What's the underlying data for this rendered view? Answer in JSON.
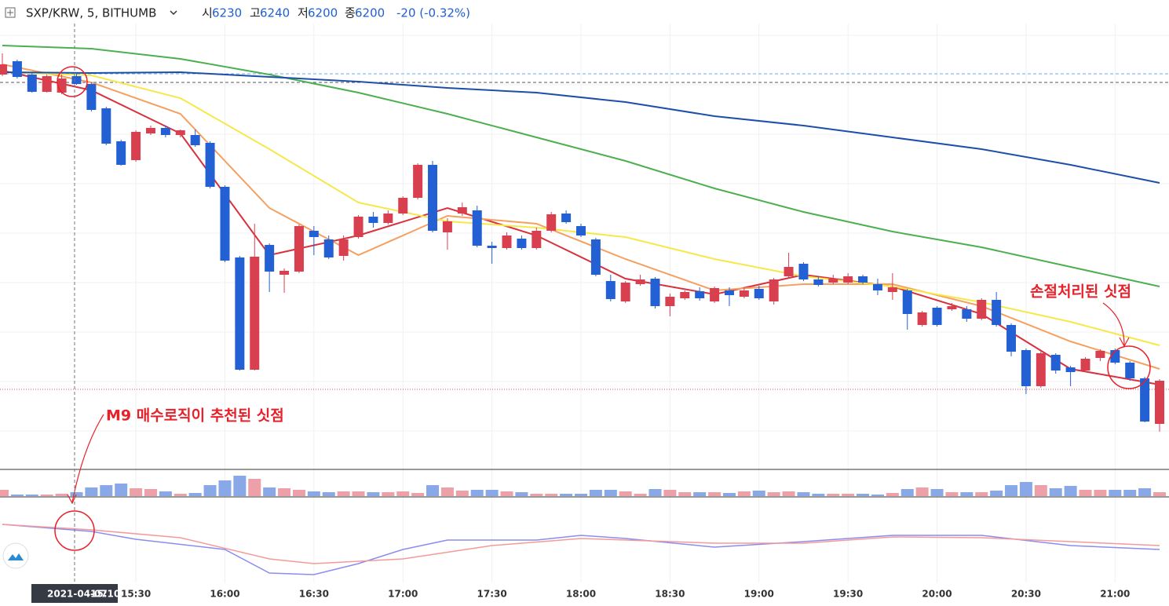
{
  "chart_data": {
    "type": "candlestick",
    "header": {
      "symbol": "SXP/KRW, 5, BITHUMB",
      "open_label": "시",
      "open": 6230,
      "high_label": "고",
      "high": 6240,
      "low_label": "저",
      "low": 6200,
      "close_label": "종",
      "close": 6200,
      "change": "-20 (-0.32%)"
    },
    "categories": [
      null,
      null,
      null,
      null,
      null,
      null,
      null,
      null,
      null,
      "15:30",
      null,
      null,
      null,
      null,
      null,
      "16:00",
      null,
      null,
      null,
      null,
      null,
      "16:30",
      null,
      null,
      null,
      null,
      null,
      "17:00",
      null,
      null,
      null,
      null,
      null,
      "17:30",
      null,
      null,
      null,
      null,
      null,
      "18:00",
      null,
      null,
      null,
      null,
      null,
      "18:30",
      null,
      null,
      null,
      null,
      null,
      "19:00",
      null,
      null,
      null,
      null,
      null,
      "19:30",
      null,
      null,
      null,
      null,
      null,
      "20:00",
      null,
      null,
      null,
      null,
      null,
      "20:30",
      null,
      null,
      null,
      null,
      null,
      "21:00",
      null,
      null,
      null
    ],
    "crosshair": {
      "index": 5,
      "date": "2021-04-07",
      "time": "15:10"
    },
    "up_color": "#d9404f",
    "down_color": "#2360d4",
    "open": [
      6605,
      6622,
      6605,
      6583,
      6582,
      6603,
      6593,
      6562,
      6520,
      6496,
      6530,
      6537,
      6528,
      6528,
      6518,
      6462,
      6372,
      6229,
      6388,
      6350,
      6354,
      6406,
      6395,
      6374,
      6398,
      6424,
      6416,
      6428,
      6448,
      6490,
      6404,
      6428,
      6432,
      6387,
      6384,
      6396,
      6384,
      6406,
      6428,
      6412,
      6395,
      6342,
      6316,
      6338,
      6345,
      6310,
      6320,
      6329,
      6316,
      6330,
      6322,
      6332,
      6316,
      6348,
      6364,
      6344,
      6340,
      6340,
      6348,
      6338,
      6328,
      6330,
      6286,
      6308,
      6306,
      6306,
      6294,
      6318,
      6286,
      6254,
      6208,
      6248,
      6232,
      6228,
      6244,
      6254,
      6238,
      6218,
      6160
    ],
    "high": [
      6632,
      6624,
      6607,
      6605,
      6605,
      6608,
      6595,
      6564,
      6522,
      6534,
      6540,
      6540,
      6535,
      6535,
      6520,
      6464,
      6374,
      6415,
      6390,
      6358,
      6414,
      6412,
      6400,
      6400,
      6426,
      6430,
      6432,
      6450,
      6492,
      6495,
      6422,
      6442,
      6438,
      6392,
      6404,
      6400,
      6410,
      6430,
      6432,
      6415,
      6397,
      6350,
      6342,
      6350,
      6347,
      6326,
      6330,
      6334,
      6335,
      6334,
      6334,
      6336,
      6346,
      6378,
      6366,
      6348,
      6350,
      6352,
      6350,
      6345,
      6352,
      6332,
      6304,
      6310,
      6314,
      6310,
      6320,
      6328,
      6288,
      6256,
      6252,
      6250,
      6234,
      6245,
      6255,
      6256,
      6240,
      6220,
      6217
    ],
    "low": [
      6603,
      6600,
      6582,
      6582,
      6580,
      6592,
      6558,
      6515,
      6489,
      6494,
      6528,
      6525,
      6525,
      6513,
      6460,
      6366,
      6228,
      6228,
      6328,
      6327,
      6352,
      6375,
      6370,
      6368,
      6396,
      6410,
      6414,
      6426,
      6446,
      6404,
      6382,
      6425,
      6385,
      6364,
      6382,
      6382,
      6382,
      6404,
      6415,
      6398,
      6348,
      6316,
      6314,
      6336,
      6307,
      6297,
      6318,
      6317,
      6314,
      6310,
      6320,
      6318,
      6312,
      6346,
      6342,
      6335,
      6338,
      6338,
      6338,
      6324,
      6318,
      6280,
      6284,
      6284,
      6304,
      6290,
      6292,
      6284,
      6246,
      6198,
      6206,
      6224,
      6208,
      6226,
      6240,
      6236,
      6215,
      6162,
      6150
    ],
    "close": [
      6618,
      6602,
      6583,
      6603,
      6600,
      6593,
      6560,
      6517,
      6490,
      6532,
      6537,
      6528,
      6534,
      6515,
      6462,
      6368,
      6229,
      6373,
      6354,
      6355,
      6412,
      6398,
      6372,
      6395,
      6424,
      6416,
      6428,
      6448,
      6490,
      6406,
      6418,
      6436,
      6387,
      6384,
      6400,
      6384,
      6406,
      6427,
      6417,
      6400,
      6350,
      6319,
      6340,
      6344,
      6310,
      6322,
      6328,
      6320,
      6333,
      6324,
      6330,
      6320,
      6344,
      6360,
      6344,
      6337,
      6345,
      6348,
      6340,
      6330,
      6334,
      6300,
      6302,
      6286,
      6310,
      6294,
      6318,
      6286,
      6252,
      6208,
      6250,
      6228,
      6226,
      6243,
      6253,
      6238,
      6218,
      6163,
      6215
    ],
    "ylim": [
      6110,
      6660
    ],
    "price_lines": [
      {
        "value": 6606,
        "color": "#6fa8f0",
        "dash": "4 3"
      },
      {
        "value": 6595,
        "color": "#555555",
        "dash": "4 3"
      },
      {
        "value": 6204,
        "color": "#e05050",
        "dash": "1 2"
      }
    ],
    "ma_lines": [
      {
        "color": "#d9303c",
        "x": [
          0,
          6,
          12,
          18,
          24,
          30,
          36,
          42,
          48,
          54,
          60,
          66,
          72,
          78
        ],
        "values": [
          6610,
          6585,
          6530,
          6375,
          6400,
          6435,
          6400,
          6345,
          6325,
          6350,
          6335,
          6300,
          6230,
          6210
        ]
      },
      {
        "color": "#f5a060",
        "x": [
          0,
          6,
          12,
          18,
          24,
          30,
          36,
          42,
          48,
          54,
          60,
          66,
          72,
          78
        ],
        "values": [
          6618,
          6595,
          6555,
          6435,
          6375,
          6425,
          6415,
          6370,
          6330,
          6338,
          6338,
          6310,
          6265,
          6230
        ]
      },
      {
        "color": "#f7e84a",
        "x": [
          0,
          6,
          12,
          18,
          24,
          30,
          36,
          42,
          48,
          54,
          60,
          66,
          72,
          78
        ],
        "values": [
          6608,
          6604,
          6575,
          6510,
          6442,
          6418,
          6410,
          6398,
          6370,
          6348,
          6335,
          6315,
          6290,
          6260
        ]
      },
      {
        "color": "#4caf50",
        "x": [
          0,
          6,
          12,
          18,
          24,
          30,
          36,
          42,
          48,
          54,
          60,
          66,
          72,
          78
        ],
        "values": [
          6642,
          6638,
          6625,
          6605,
          6582,
          6555,
          6525,
          6495,
          6460,
          6430,
          6405,
          6385,
          6360,
          6335
        ]
      },
      {
        "color": "#1e4fa8",
        "x": [
          0,
          6,
          12,
          18,
          24,
          30,
          36,
          42,
          48,
          54,
          60,
          66,
          72,
          78
        ],
        "values": [
          6608,
          6607,
          6608,
          6602,
          6596,
          6588,
          6582,
          6570,
          6552,
          6540,
          6525,
          6510,
          6490,
          6467
        ]
      }
    ],
    "volume": {
      "ylim": [
        0,
        30
      ],
      "values": [
        8,
        2,
        2,
        2,
        3,
        5,
        11,
        14,
        16,
        10,
        9,
        6,
        3,
        4,
        14,
        20,
        26,
        22,
        11,
        10,
        8,
        6,
        5,
        6,
        6,
        5,
        5,
        6,
        4,
        14,
        11,
        7,
        8,
        8,
        6,
        5,
        3,
        3,
        3,
        3,
        8,
        8,
        6,
        3,
        9,
        8,
        5,
        5,
        5,
        4,
        6,
        7,
        5,
        6,
        5,
        3,
        3,
        3,
        3,
        2,
        4,
        9,
        11,
        9,
        5,
        5,
        5,
        7,
        14,
        18,
        14,
        10,
        13,
        8,
        8,
        8,
        8,
        10,
        5
      ]
    },
    "indicator": {
      "ylim": [
        -40,
        60
      ],
      "lines": [
        {
          "color": "#8a8cf0",
          "x": [
            0,
            6,
            9,
            15,
            18,
            21,
            24,
            27,
            30,
            36,
            39,
            42,
            48,
            54,
            60,
            66,
            72,
            78
          ],
          "values": [
            32,
            23,
            13,
            0,
            -30,
            -32,
            -18,
            0,
            12,
            12,
            18,
            14,
            3,
            10,
            18,
            18,
            5,
            0
          ]
        },
        {
          "color": "#f59a9a",
          "x": [
            0,
            6,
            12,
            18,
            21,
            27,
            33,
            39,
            48,
            54,
            60,
            66,
            72,
            78
          ],
          "values": [
            32,
            25,
            15,
            -12,
            -18,
            -12,
            5,
            14,
            8,
            8,
            16,
            15,
            10,
            5
          ]
        }
      ]
    },
    "annotations": [
      "M9 매수로직이 추천된 싯점",
      "손절처리된 싯점"
    ]
  }
}
